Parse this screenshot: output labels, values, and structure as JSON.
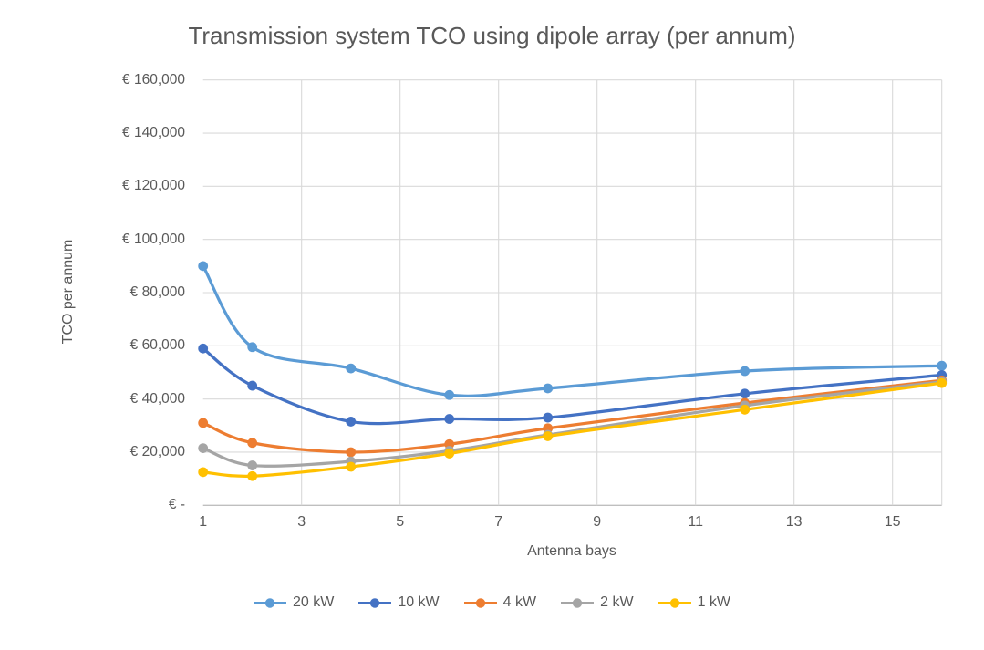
{
  "chart_data": {
    "type": "line",
    "title": "Transmission system TCO using dipole array (per annum)",
    "xlabel": "Antenna bays",
    "ylabel": "TCO per annum",
    "x": [
      1,
      2,
      4,
      6,
      8,
      12,
      16
    ],
    "series": [
      {
        "name": "20 kW",
        "color": "#5B9BD5",
        "values": [
          90000,
          59500,
          51500,
          41500,
          44000,
          50500,
          52500
        ]
      },
      {
        "name": "10 kW",
        "color": "#4472C4",
        "values": [
          59000,
          45000,
          31500,
          32500,
          33000,
          42000,
          49000
        ]
      },
      {
        "name": "4 kW",
        "color": "#ED7D31",
        "values": [
          31000,
          23500,
          20000,
          23000,
          29000,
          38500,
          47000
        ]
      },
      {
        "name": "2 kW",
        "color": "#A5A5A5",
        "values": [
          21500,
          15000,
          16500,
          20500,
          26500,
          37500,
          46500
        ]
      },
      {
        "name": "1 kW",
        "color": "#FFC000",
        "values": [
          12500,
          11000,
          14500,
          19500,
          26000,
          36000,
          46000
        ]
      }
    ],
    "xlim": [
      1,
      16
    ],
    "ylim": [
      0,
      160000
    ],
    "x_ticks": [
      {
        "label": "1",
        "value": 1
      },
      {
        "label": "3",
        "value": 3
      },
      {
        "label": "5",
        "value": 5
      },
      {
        "label": "7",
        "value": 7
      },
      {
        "label": "9",
        "value": 9
      },
      {
        "label": "11",
        "value": 11
      },
      {
        "label": "13",
        "value": 13
      },
      {
        "label": "15",
        "value": 15
      }
    ],
    "y_ticks": [
      {
        "label": "€ 160,000",
        "value": 160000
      },
      {
        "label": "€ 140,000",
        "value": 140000
      },
      {
        "label": "€ 120,000",
        "value": 120000
      },
      {
        "label": "€ 100,000",
        "value": 100000
      },
      {
        "label": "€ 80,000",
        "value": 80000
      },
      {
        "label": "€ 60,000",
        "value": 60000
      },
      {
        "label": "€ 40,000",
        "value": 40000
      },
      {
        "label": "€ 20,000",
        "value": 20000
      },
      {
        "label": "€ -",
        "value": 0
      }
    ],
    "grid": true,
    "legend_position": "bottom"
  },
  "colors": {
    "text": "#595959",
    "gridline": "#D9D9D9",
    "axis_line": "#BFBFBF",
    "background": "#FFFFFF"
  }
}
